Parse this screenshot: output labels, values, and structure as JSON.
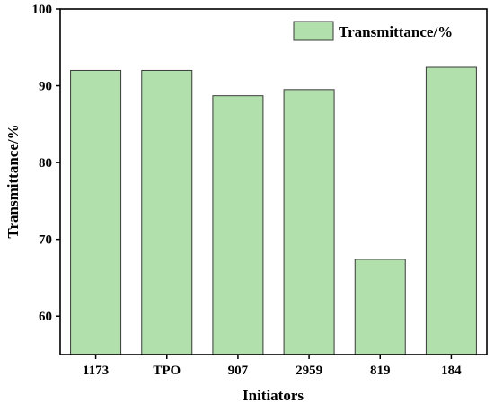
{
  "chart_data": {
    "type": "bar",
    "title": "",
    "xlabel": "Initiators",
    "ylabel": "Transmittance/%",
    "categories": [
      "1173",
      "TPO",
      "907",
      "2959",
      "819",
      "184"
    ],
    "series": [
      {
        "name": "Transmittance/%",
        "values": [
          92.0,
          92.0,
          88.7,
          89.5,
          67.4,
          92.4
        ]
      }
    ],
    "ylim": [
      55,
      100
    ],
    "yticks": [
      60,
      70,
      80,
      90,
      100
    ],
    "grid": false,
    "legend_position": "top-right",
    "colors": {
      "bar_fill": "#b2e0ac",
      "bar_stroke": "#3a3a3a",
      "axis": "#000000"
    }
  }
}
